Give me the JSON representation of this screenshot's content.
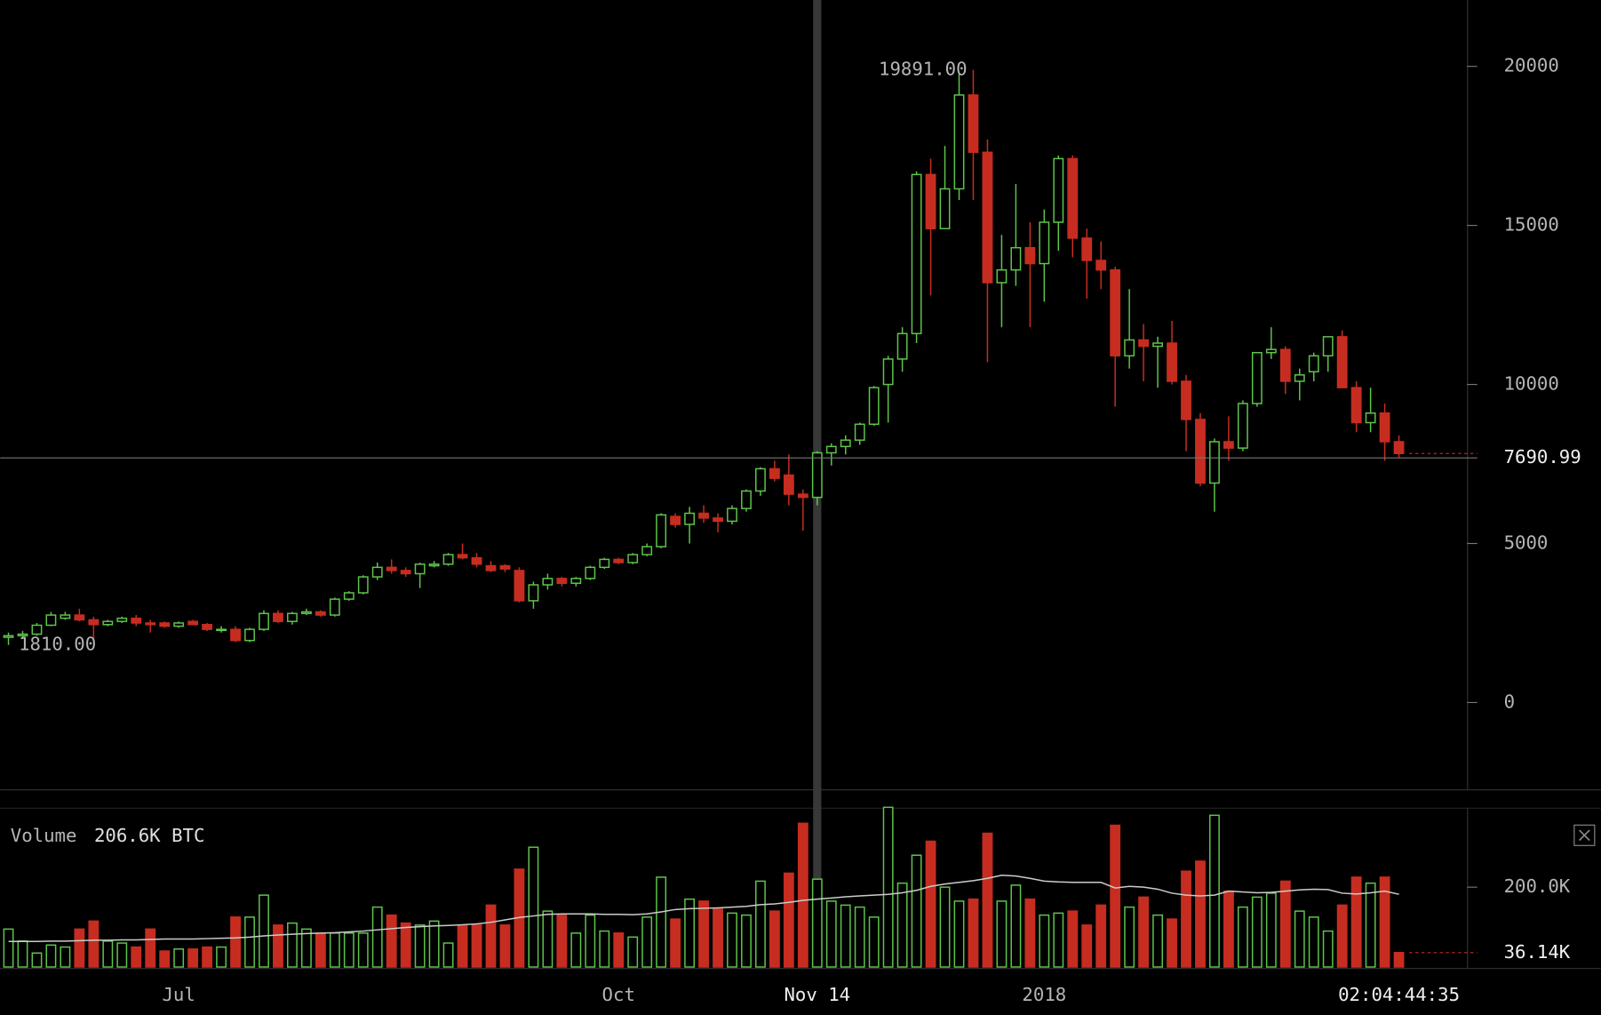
{
  "chart_data": {
    "type": "candlestick",
    "up_color": "#5ec44a",
    "down_color": "#c62d20",
    "ohlc": [
      [
        2050,
        2200,
        1810,
        2100
      ],
      [
        2100,
        2250,
        2000,
        2150
      ],
      [
        2150,
        2500,
        2100,
        2430
      ],
      [
        2430,
        2850,
        2400,
        2750
      ],
      [
        2650,
        2850,
        2600,
        2750
      ],
      [
        2750,
        2950,
        2550,
        2600
      ],
      [
        2600,
        2700,
        2000,
        2450
      ],
      [
        2450,
        2600,
        2400,
        2550
      ],
      [
        2550,
        2700,
        2500,
        2650
      ],
      [
        2650,
        2750,
        2400,
        2500
      ],
      [
        2500,
        2600,
        2200,
        2450
      ],
      [
        2500,
        2550,
        2350,
        2400
      ],
      [
        2400,
        2550,
        2350,
        2500
      ],
      [
        2550,
        2600,
        2450,
        2450
      ],
      [
        2450,
        2500,
        2250,
        2300
      ],
      [
        2300,
        2400,
        2200,
        2300
      ],
      [
        2300,
        2400,
        1900,
        1950
      ],
      [
        1950,
        2350,
        1900,
        2300
      ],
      [
        2300,
        2900,
        2250,
        2800
      ],
      [
        2800,
        2900,
        2500,
        2550
      ],
      [
        2550,
        2850,
        2450,
        2800
      ],
      [
        2800,
        2950,
        2750,
        2850
      ],
      [
        2850,
        2900,
        2700,
        2750
      ],
      [
        2750,
        3300,
        2700,
        3250
      ],
      [
        3250,
        3500,
        3200,
        3450
      ],
      [
        3450,
        4000,
        3400,
        3950
      ],
      [
        3950,
        4400,
        3850,
        4250
      ],
      [
        4250,
        4500,
        4050,
        4150
      ],
      [
        4150,
        4250,
        3950,
        4050
      ],
      [
        4050,
        4400,
        3600,
        4350
      ],
      [
        4300,
        4450,
        4250,
        4350
      ],
      [
        4350,
        4700,
        4300,
        4650
      ],
      [
        4650,
        5000,
        4500,
        4550
      ],
      [
        4550,
        4700,
        4250,
        4350
      ],
      [
        4300,
        4450,
        4100,
        4150
      ],
      [
        4300,
        4350,
        4100,
        4200
      ],
      [
        4150,
        4250,
        3150,
        3200
      ],
      [
        3200,
        3800,
        2950,
        3700
      ],
      [
        3700,
        4050,
        3550,
        3900
      ],
      [
        3900,
        3950,
        3650,
        3750
      ],
      [
        3750,
        3950,
        3650,
        3900
      ],
      [
        3900,
        4300,
        3850,
        4250
      ],
      [
        4250,
        4550,
        4200,
        4500
      ],
      [
        4500,
        4550,
        4350,
        4400
      ],
      [
        4400,
        4700,
        4350,
        4650
      ],
      [
        4650,
        5000,
        4600,
        4900
      ],
      [
        4900,
        5950,
        4850,
        5900
      ],
      [
        5850,
        5950,
        5500,
        5600
      ],
      [
        5600,
        6150,
        5000,
        5950
      ],
      [
        5950,
        6200,
        5650,
        5800
      ],
      [
        5800,
        5950,
        5350,
        5700
      ],
      [
        5700,
        6200,
        5600,
        6100
      ],
      [
        6100,
        6700,
        6000,
        6650
      ],
      [
        6650,
        7400,
        6500,
        7350
      ],
      [
        7350,
        7600,
        6950,
        7050
      ],
      [
        7150,
        7800,
        6200,
        6550
      ],
      [
        6550,
        6700,
        5400,
        6450
      ],
      [
        6450,
        7900,
        6200,
        7850
      ],
      [
        7850,
        8150,
        7450,
        8050
      ],
      [
        8050,
        8400,
        7800,
        8250
      ],
      [
        8250,
        8800,
        8100,
        8750
      ],
      [
        8750,
        9950,
        8700,
        9900
      ],
      [
        10000,
        10900,
        8800,
        10800
      ],
      [
        10800,
        11800,
        10400,
        11600
      ],
      [
        11600,
        16700,
        11300,
        16600
      ],
      [
        16600,
        17100,
        12800,
        14900
      ],
      [
        14900,
        17500,
        14900,
        16150
      ],
      [
        16150,
        19800,
        15800,
        19100
      ],
      [
        19100,
        19891,
        15800,
        17300
      ],
      [
        17300,
        17700,
        10700,
        13200
      ],
      [
        13200,
        14700,
        11800,
        13600
      ],
      [
        13600,
        16300,
        13100,
        14300
      ],
      [
        14300,
        15100,
        11800,
        13800
      ],
      [
        13800,
        15500,
        12600,
        15100
      ],
      [
        15100,
        17200,
        14200,
        17100
      ],
      [
        17100,
        17200,
        14000,
        14600
      ],
      [
        14600,
        14900,
        12700,
        13900
      ],
      [
        13900,
        14500,
        13000,
        13600
      ],
      [
        13600,
        13700,
        9300,
        10900
      ],
      [
        10900,
        13000,
        10500,
        11400
      ],
      [
        11400,
        11900,
        10100,
        11200
      ],
      [
        11200,
        11500,
        9900,
        11300
      ],
      [
        11300,
        12000,
        10000,
        10100
      ],
      [
        10100,
        10300,
        7900,
        8900
      ],
      [
        8900,
        9100,
        6800,
        6900
      ],
      [
        6900,
        8300,
        6000,
        8200
      ],
      [
        8200,
        9000,
        7600,
        8000
      ],
      [
        8000,
        9500,
        7900,
        9400
      ],
      [
        9400,
        11000,
        9300,
        11000
      ],
      [
        11000,
        11800,
        10800,
        11100
      ],
      [
        11100,
        11200,
        9700,
        10100
      ],
      [
        10100,
        10500,
        9500,
        10300
      ],
      [
        10400,
        11000,
        10100,
        10900
      ],
      [
        10900,
        11500,
        10400,
        11500
      ],
      [
        11500,
        11700,
        9900,
        9900
      ],
      [
        9900,
        10100,
        8500,
        8800
      ],
      [
        8800,
        9900,
        8500,
        9100
      ],
      [
        9100,
        9400,
        7600,
        8200
      ],
      [
        8200,
        8400,
        7700,
        7830
      ]
    ],
    "xlim": [
      -0.58,
      102.8
    ],
    "xticks": [
      {
        "value": 12,
        "label": "Jul"
      },
      {
        "value": 43,
        "label": "Oct"
      },
      {
        "value": 57,
        "label": "Nov 14"
      },
      {
        "value": 73,
        "label": "2018"
      }
    ],
    "timer": {
      "value": 98,
      "label": "02:04:44:35"
    },
    "ylim": [
      -2729,
      22087
    ],
    "yticks": [
      0,
      5000,
      10000,
      15000,
      20000
    ],
    "annotations": [
      {
        "index": 68,
        "value": 19891,
        "label": "19891.00"
      },
      {
        "index": 0,
        "value": 1810,
        "label": "1810.00"
      }
    ],
    "crosshair": {
      "index": 57,
      "value": 7690.99
    },
    "volume": {
      "label": "Volume",
      "current": "206.6K BTC",
      "values": [
        95000,
        65000,
        35000,
        55000,
        50000,
        95000,
        115000,
        65000,
        60000,
        50000,
        95000,
        40000,
        45000,
        45000,
        50000,
        50000,
        125000,
        125000,
        180000,
        105000,
        110000,
        95000,
        85000,
        85000,
        85000,
        85000,
        150000,
        130000,
        110000,
        105000,
        115000,
        60000,
        105000,
        105000,
        155000,
        105000,
        245000,
        300000,
        140000,
        130000,
        85000,
        130000,
        90000,
        85000,
        75000,
        125000,
        225000,
        120000,
        170000,
        165000,
        145000,
        135000,
        130000,
        215000,
        140000,
        235000,
        360000,
        220000,
        165000,
        155000,
        150000,
        125000,
        400000,
        210000,
        280000,
        315000,
        200000,
        165000,
        170000,
        335000,
        165000,
        205000,
        170000,
        130000,
        135000,
        140000,
        105000,
        155000,
        355000,
        150000,
        175000,
        130000,
        120000,
        240000,
        265000,
        380000,
        190000,
        150000,
        175000,
        185000,
        215000,
        140000,
        125000,
        90000,
        155000,
        225000,
        210000,
        225000,
        36140
      ],
      "ma": [
        64000,
        64000,
        64000,
        65000,
        65000,
        66000,
        67000,
        67000,
        68000,
        68000,
        69000,
        70000,
        70000,
        70000,
        71000,
        72000,
        73000,
        75000,
        78000,
        80000,
        82000,
        84000,
        85000,
        86000,
        88000,
        90000,
        93000,
        96000,
        99000,
        101000,
        103000,
        104000,
        106000,
        108000,
        112000,
        118000,
        124000,
        128000,
        132000,
        133000,
        133000,
        133000,
        132000,
        132000,
        131000,
        133000,
        138000,
        144000,
        146000,
        147000,
        148000,
        150000,
        152000,
        156000,
        158000,
        162000,
        167000,
        170000,
        173000,
        176000,
        178000,
        180000,
        182000,
        186000,
        192000,
        202000,
        208000,
        212000,
        216000,
        222000,
        230000,
        228000,
        222000,
        215000,
        213000,
        212000,
        212000,
        212000,
        198000,
        202000,
        200000,
        195000,
        185000,
        180000,
        178000,
        180000,
        190000,
        188000,
        186000,
        187000,
        190000,
        193000,
        195000,
        194000,
        185000,
        183000,
        186000,
        190000,
        182000
      ],
      "ma_color": "#cccccc",
      "ylim": [
        0,
        399000
      ],
      "yticks": [
        {
          "value": 200000,
          "label": "200.0K"
        }
      ],
      "last": {
        "value": 36140,
        "label": "36.14K"
      }
    }
  }
}
